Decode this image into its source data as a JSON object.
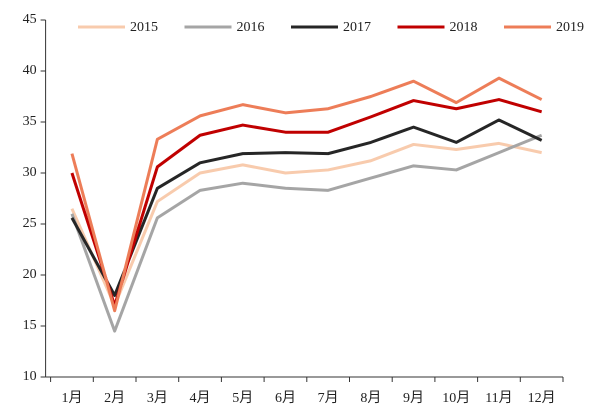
{
  "chart_data": {
    "type": "line",
    "categories": [
      "1月",
      "2月",
      "3月",
      "4月",
      "5月",
      "6月",
      "7月",
      "8月",
      "9月",
      "10月",
      "11月",
      "12月"
    ],
    "series": [
      {
        "name": "2015",
        "color": "#f8cbad",
        "values": [
          26.5,
          17,
          27.2,
          30,
          30.8,
          30,
          30.3,
          31.2,
          32.8,
          32.3,
          32.9,
          32
        ]
      },
      {
        "name": "2016",
        "color": "#a5a5a5",
        "values": [
          26,
          14.5,
          25.6,
          28.3,
          29,
          28.5,
          28.3,
          29.5,
          30.7,
          30.3,
          32,
          33.7
        ]
      },
      {
        "name": "2017",
        "color": "#262626",
        "values": [
          25.6,
          18,
          28.5,
          31,
          31.9,
          32,
          31.9,
          33,
          34.5,
          33,
          35.2,
          33.2
        ]
      },
      {
        "name": "2018",
        "color": "#c00000",
        "values": [
          30,
          17,
          30.6,
          33.7,
          34.7,
          34,
          34,
          35.5,
          37.1,
          36.3,
          37.2,
          36
        ]
      },
      {
        "name": "2019",
        "color": "#ed7d58",
        "values": [
          31.9,
          16.5,
          33.3,
          35.6,
          36.7,
          35.9,
          36.3,
          37.5,
          39,
          36.9,
          39.3,
          37.2
        ]
      }
    ],
    "ylim": [
      10,
      45
    ],
    "yticks": [
      10,
      15,
      20,
      25,
      30,
      35,
      40,
      45
    ],
    "legend": "top"
  }
}
